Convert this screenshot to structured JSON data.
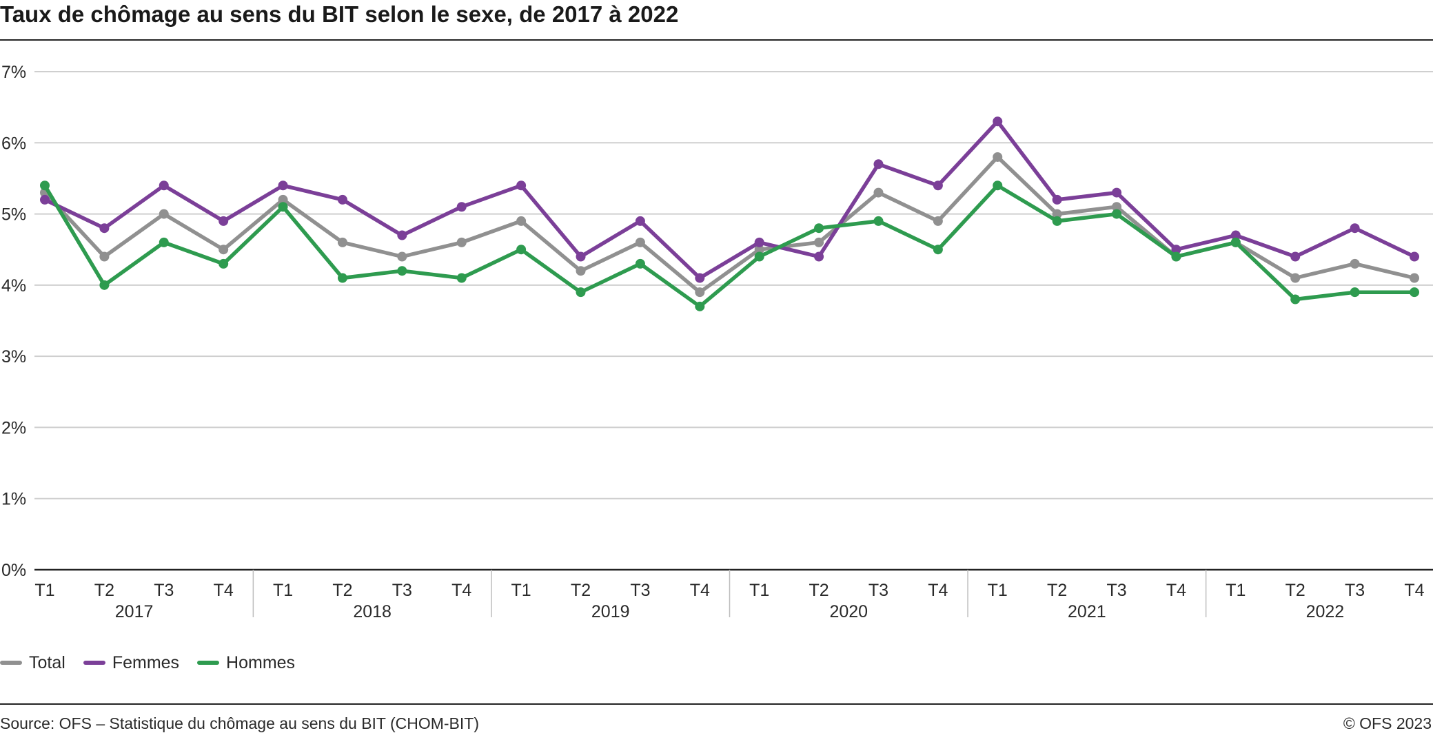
{
  "title": "Taux de chômage au sens du BIT selon le sexe, de 2017 à 2022",
  "source": "Source: OFS – Statistique du chômage au sens du BIT (CHOM-BIT)",
  "copyright": "© OFS 2023",
  "colors": {
    "Total": "#909090",
    "Femmes": "#7b3f98",
    "Hommes": "#2e9b4f"
  },
  "chart_data": {
    "type": "line",
    "title": "Taux de chômage au sens du BIT selon le sexe, de 2017 à 2022",
    "xlabel": "",
    "ylabel": "",
    "ylim": [
      0,
      7
    ],
    "yticks": [
      "0%",
      "1%",
      "2%",
      "3%",
      "4%",
      "5%",
      "6%",
      "7%"
    ],
    "grid": true,
    "legend_position": "bottom-left",
    "years": [
      "2017",
      "2018",
      "2019",
      "2020",
      "2021",
      "2022"
    ],
    "quarters": [
      "T1",
      "T2",
      "T3",
      "T4"
    ],
    "series": [
      {
        "name": "Total",
        "values": [
          5.3,
          4.4,
          5.0,
          4.5,
          5.2,
          4.6,
          4.4,
          4.6,
          4.9,
          4.2,
          4.6,
          3.9,
          4.5,
          4.6,
          5.3,
          4.9,
          5.8,
          5.0,
          5.1,
          4.4,
          4.6,
          4.1,
          4.3,
          4.1
        ]
      },
      {
        "name": "Femmes",
        "values": [
          5.2,
          4.8,
          5.4,
          4.9,
          5.4,
          5.2,
          4.7,
          5.1,
          5.4,
          4.4,
          4.9,
          4.1,
          4.6,
          4.4,
          5.7,
          5.4,
          6.3,
          5.2,
          5.3,
          4.5,
          4.7,
          4.4,
          4.8,
          4.4
        ]
      },
      {
        "name": "Hommes",
        "values": [
          5.4,
          4.0,
          4.6,
          4.3,
          5.1,
          4.1,
          4.2,
          4.1,
          4.5,
          3.9,
          4.3,
          3.7,
          4.4,
          4.8,
          4.9,
          4.5,
          5.4,
          4.9,
          5.0,
          4.4,
          4.6,
          3.8,
          3.9,
          3.9
        ]
      }
    ]
  }
}
